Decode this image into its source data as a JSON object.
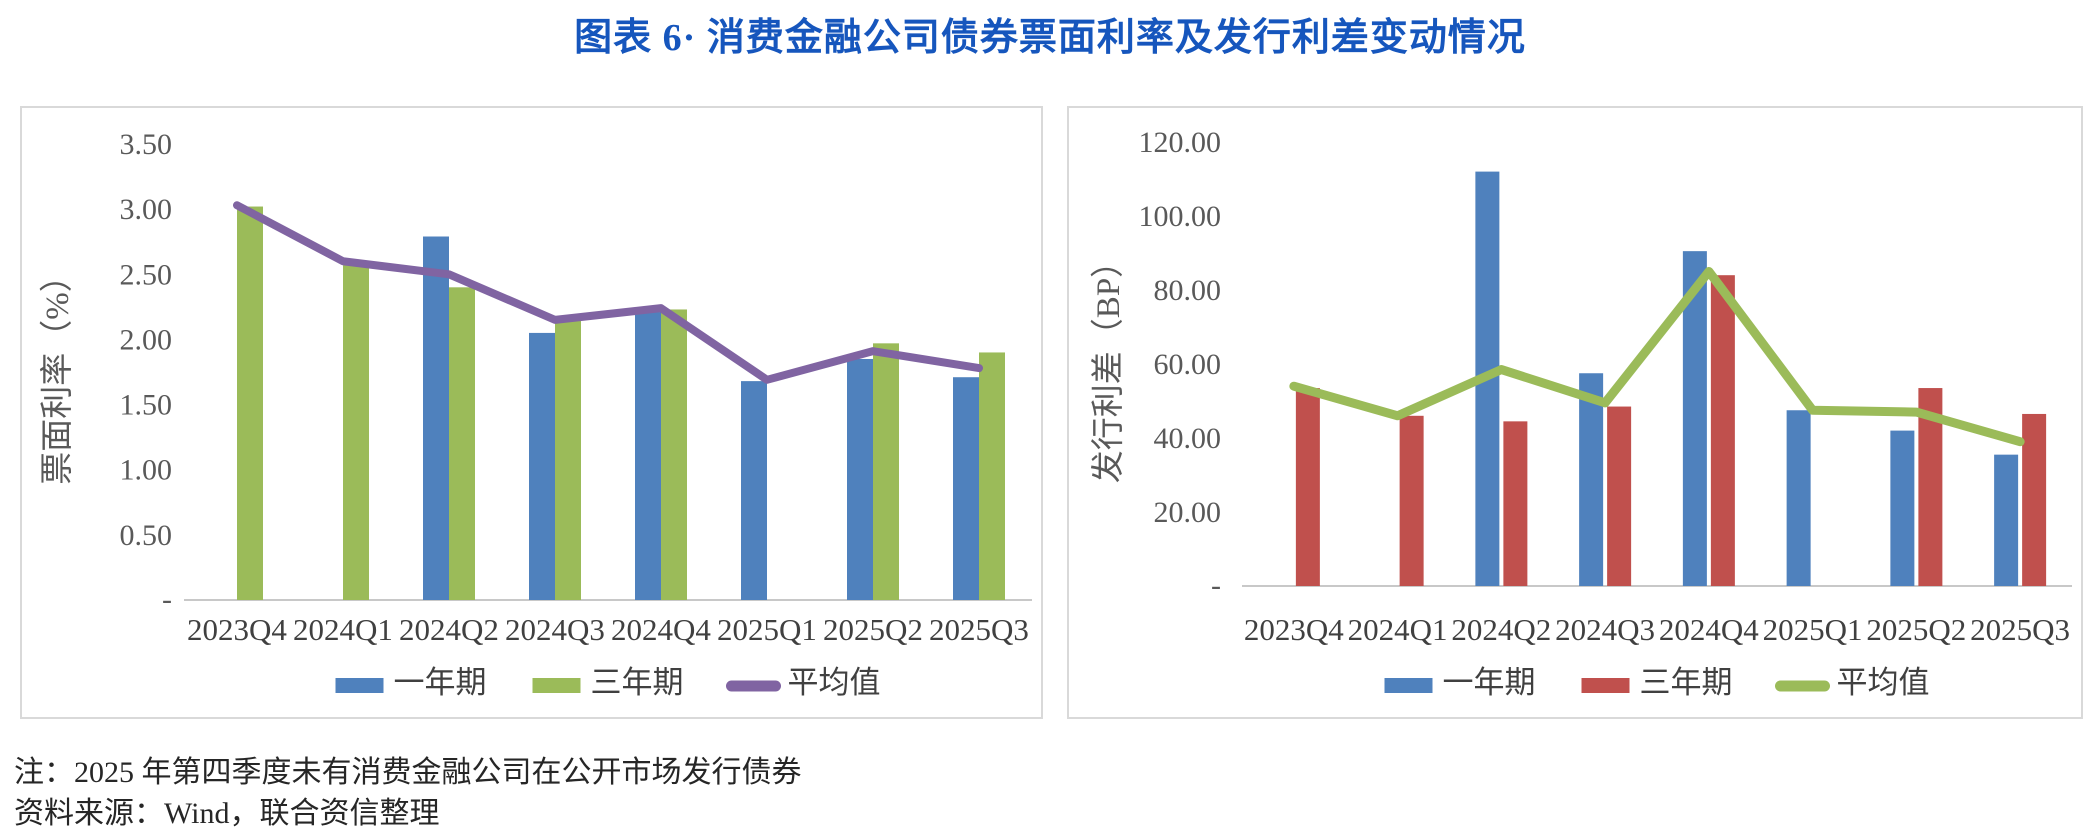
{
  "page": {
    "title": "图表 6· 消费金融公司债券票面利率及发行利差变动情况",
    "notes": [
      "注：2025 年第四季度未有消费金融公司在公开市场发行债券",
      "资料来源：Wind，联合资信整理"
    ]
  },
  "colors": {
    "title_blue": "#1656BD",
    "one_year_bar": "#4F81BD",
    "three_year_bar_left": "#9BBB59",
    "three_year_bar_right": "#C0504D",
    "average_line_left": "#8064A2",
    "average_line_right": "#9BBB59",
    "tick_text": "#595959",
    "label_text": "#404040",
    "axis_line": "#C8C8C8",
    "panel_border": "#D9D9D9"
  },
  "chart_data": [
    {
      "type": "bar",
      "subtype": "grouped-bars-with-line",
      "ylabel": "票面利率（%）",
      "categories": [
        "2023Q4",
        "2024Q1",
        "2024Q2",
        "2024Q3",
        "2024Q4",
        "2025Q1",
        "2025Q2",
        "2025Q3"
      ],
      "bar_series": [
        {
          "name": "一年期",
          "color": "#4F81BD",
          "values": [
            null,
            null,
            2.79,
            2.05,
            2.21,
            1.68,
            1.85,
            1.71
          ]
        },
        {
          "name": "三年期",
          "color": "#9BBB59",
          "values": [
            3.02,
            2.57,
            2.4,
            2.17,
            2.23,
            null,
            1.97,
            1.9
          ]
        }
      ],
      "line_series": [
        {
          "name": "平均值",
          "color": "#8064A2",
          "values": [
            3.03,
            2.6,
            2.5,
            2.15,
            2.24,
            1.69,
            1.91,
            1.78
          ]
        }
      ],
      "ylim": [
        0,
        3.5
      ],
      "ytick_step": 0.5,
      "ytick_decimals": 2,
      "zero_label": "-",
      "grid": false,
      "legend_position": "bottom"
    },
    {
      "type": "bar",
      "subtype": "grouped-bars-with-line",
      "ylabel": "发行利差（BP）",
      "categories": [
        "2023Q4",
        "2024Q1",
        "2024Q2",
        "2024Q3",
        "2024Q4",
        "2025Q1",
        "2025Q2",
        "2025Q3"
      ],
      "bar_series": [
        {
          "name": "一年期",
          "color": "#4F81BD",
          "values": [
            null,
            null,
            112.0,
            57.5,
            90.5,
            47.5,
            42.0,
            35.5
          ]
        },
        {
          "name": "三年期",
          "color": "#C0504D",
          "values": [
            53.5,
            46.0,
            44.5,
            48.5,
            84.0,
            null,
            53.5,
            46.5
          ]
        }
      ],
      "line_series": [
        {
          "name": "平均值",
          "color": "#9BBB59",
          "values": [
            54.0,
            46.0,
            58.5,
            49.5,
            85.0,
            47.5,
            47.0,
            39.0
          ]
        }
      ],
      "ylim": [
        0,
        120
      ],
      "ytick_step": 20,
      "ytick_decimals": 2,
      "zero_label": "-",
      "grid": false,
      "legend_position": "bottom"
    }
  ]
}
